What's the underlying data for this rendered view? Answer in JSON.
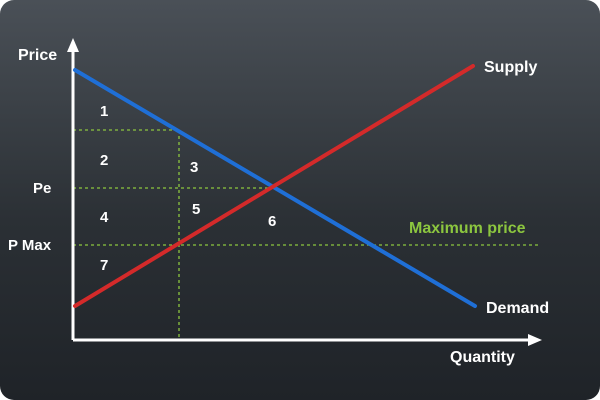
{
  "diagram": {
    "y_axis_label": "Price",
    "x_axis_label": "Quantity",
    "y_tick_labels": [
      "Pe",
      "P Max"
    ],
    "curves": {
      "supply_label": "Supply",
      "demand_label": "Demand"
    },
    "max_price_label": "Maximum price",
    "regions": [
      "1",
      "2",
      "3",
      "4",
      "5",
      "6",
      "7"
    ],
    "colors": {
      "supply": "#d42a2a",
      "demand": "#1f6fd6",
      "guides": "#8cc63f",
      "axes": "#ffffff",
      "text": "#ffffff",
      "max_price_text": "#8cc63f"
    }
  }
}
